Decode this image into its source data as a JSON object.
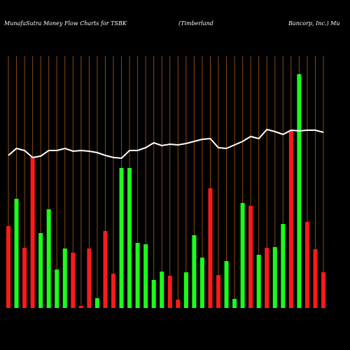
{
  "chart_data": {
    "type": "bar",
    "title": "MunafaSutra  Money Flow  Charts for TSBK",
    "subtitle": "(Timberland",
    "subtitle2": "Bancorp, Inc.) Mu",
    "ylim": [
      0,
      340
    ],
    "series": [
      {
        "name": "Money flow",
        "colors": [
          "red",
          "green",
          "red",
          "red",
          "green",
          "green",
          "green",
          "green",
          "red",
          "red",
          "red",
          "green",
          "red",
          "red",
          "green",
          "green",
          "green",
          "green",
          "green",
          "green",
          "red",
          "red",
          "green",
          "green",
          "green",
          "red",
          "red",
          "green",
          "green",
          "green",
          "red",
          "green",
          "red",
          "green",
          "green",
          "red",
          "green",
          "red",
          "red",
          "red"
        ],
        "values": [
          117,
          156,
          86,
          216,
          107,
          141,
          55,
          85,
          79,
          3,
          85,
          14,
          110,
          49,
          200,
          200,
          93,
          91,
          40,
          52,
          46,
          12,
          51,
          104,
          72,
          171,
          47,
          67,
          13,
          150,
          146,
          76,
          86,
          87,
          120,
          254,
          334,
          123,
          84,
          51
        ]
      },
      {
        "name": "Price",
        "color": "#ffffff",
        "values": [
          218,
          228,
          225,
          215,
          217,
          225,
          225,
          228,
          224,
          225,
          224,
          222,
          218,
          215,
          214,
          225,
          225,
          229,
          236,
          232,
          234,
          233,
          235,
          238,
          241,
          242,
          229,
          228,
          233,
          238,
          245,
          242,
          255,
          252,
          248,
          254,
          253,
          254,
          254,
          251
        ]
      }
    ]
  }
}
